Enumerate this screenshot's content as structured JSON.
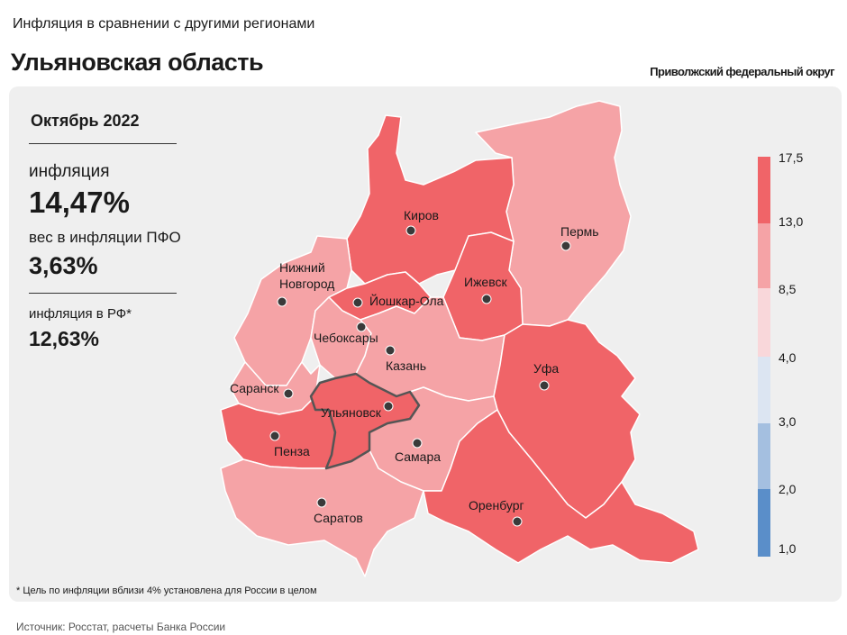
{
  "header": {
    "subtitle": "Инфляция в сравнении с другими регионами",
    "title": "Ульяновская область",
    "district": "Приволжский федеральный округ"
  },
  "stats": {
    "period": "Октябрь 2022",
    "inflation_label": "инфляция",
    "inflation_value": "14,47%",
    "weight_label": "вес в инфляции  ПФО",
    "weight_value": "3,63%",
    "rf_label": "инфляция  в РФ*",
    "rf_value": "12,63%"
  },
  "legend": {
    "ticks": [
      "17,5",
      "13,0",
      "8,5",
      "4,0",
      "3,0",
      "2,0",
      "1,0"
    ],
    "colors": [
      "#f06468",
      "#f5a3a6",
      "#f9d7da",
      "#dce5f2",
      "#a4bfe0",
      "#5a8ec9"
    ]
  },
  "map": {
    "highlighted_region": "Ульяновск",
    "regions": [
      {
        "city": "Киров",
        "color": "#f06468"
      },
      {
        "city": "Пермь",
        "color": "#f5a3a6"
      },
      {
        "city": "Нижний Новгород",
        "color": "#f5a3a6"
      },
      {
        "city": "Йошкар-Ола",
        "color": "#f06468"
      },
      {
        "city": "Ижевск",
        "color": "#f06468"
      },
      {
        "city": "Чебоксары",
        "color": "#f5a3a6"
      },
      {
        "city": "Казань",
        "color": "#f5a3a6"
      },
      {
        "city": "Уфа",
        "color": "#f06468"
      },
      {
        "city": "Саранск",
        "color": "#f5a3a6"
      },
      {
        "city": "Ульяновск",
        "color": "#f06468"
      },
      {
        "city": "Пенза",
        "color": "#f06468"
      },
      {
        "city": "Самара",
        "color": "#f5a3a6"
      },
      {
        "city": "Саратов",
        "color": "#f5a3a6"
      },
      {
        "city": "Оренбург",
        "color": "#f06468"
      }
    ]
  },
  "footnote": "* Цель по инфляции вблизи 4% установлена для России в целом",
  "source": "Источник: Росстат, расчеты Банка России"
}
